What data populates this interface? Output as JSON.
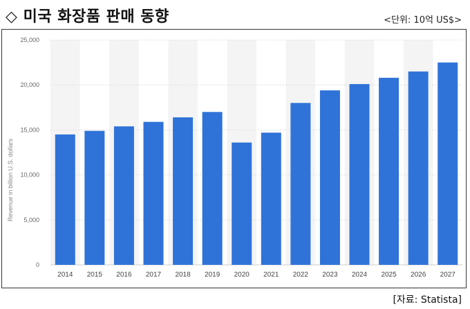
{
  "header": {
    "title": "◇ 미국 화장품 판매 동향",
    "unit": "<단위: 10억 US$>"
  },
  "footer": {
    "source": "[자료: Statista]"
  },
  "chart_data": {
    "type": "bar",
    "categories": [
      "2014",
      "2015",
      "2016",
      "2017",
      "2018",
      "2019",
      "2020",
      "2021",
      "2022",
      "2023",
      "2024",
      "2025",
      "2026",
      "2027"
    ],
    "values": [
      14.5,
      14.9,
      15.4,
      15.9,
      16.4,
      17.0,
      13.6,
      14.7,
      18.0,
      19.4,
      20.1,
      20.8,
      21.5,
      22.5
    ],
    "ylabel": "Revenue in billion U.S. dollars",
    "ylim": [
      0,
      25
    ],
    "yticks": [
      0,
      5,
      10,
      15,
      20,
      25
    ],
    "ytick_labels": [
      "0",
      "5,000",
      "10,000",
      "15,000",
      "20,000",
      "25,000"
    ],
    "bar_color": "#2f73d9",
    "grid": true
  }
}
